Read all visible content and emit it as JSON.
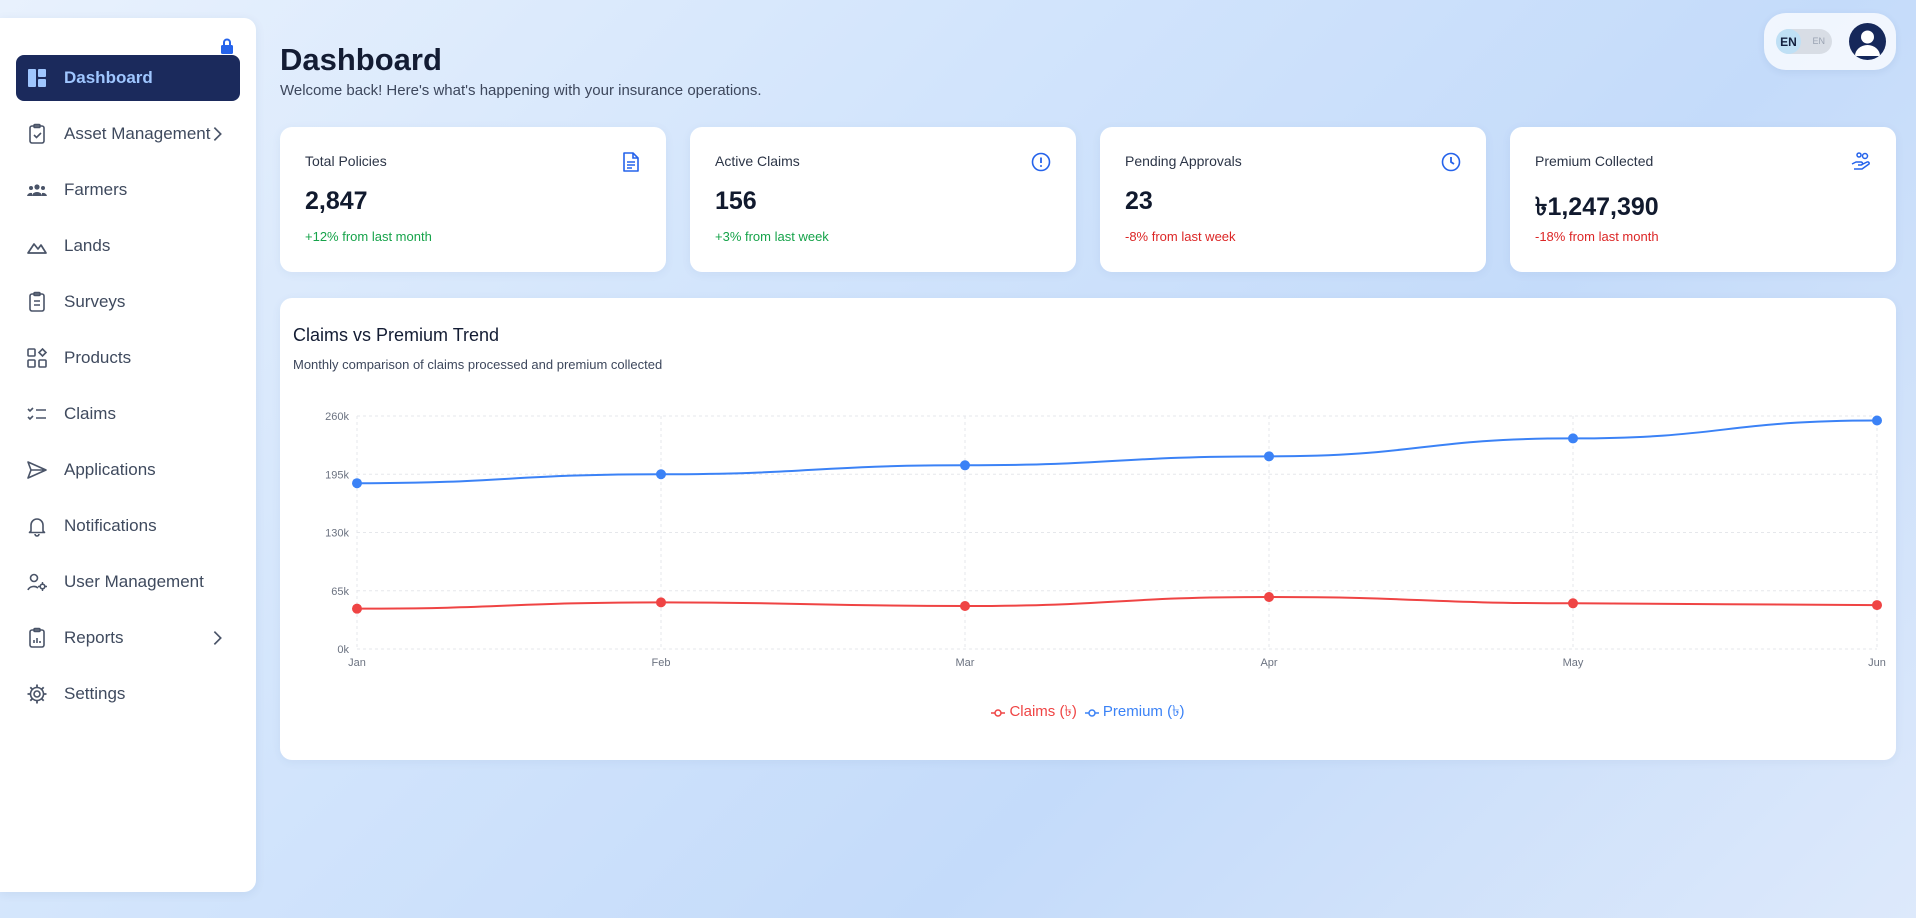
{
  "sidebar": {
    "items": [
      {
        "label": "Dashboard",
        "icon": "dashboard-icon",
        "active": true
      },
      {
        "label": "Asset Management",
        "icon": "clipboard-check-icon",
        "chevron": true
      },
      {
        "label": "Farmers",
        "icon": "users-icon"
      },
      {
        "label": "Lands",
        "icon": "mountain-icon"
      },
      {
        "label": "Surveys",
        "icon": "clipboard-icon"
      },
      {
        "label": "Products",
        "icon": "grid-icon"
      },
      {
        "label": "Claims",
        "icon": "checklist-icon"
      },
      {
        "label": "Applications",
        "icon": "send-icon"
      },
      {
        "label": "Notifications",
        "icon": "bell-icon"
      },
      {
        "label": "User Management",
        "icon": "user-cog-icon"
      },
      {
        "label": "Reports",
        "icon": "report-icon",
        "chevron": true
      },
      {
        "label": "Settings",
        "icon": "gear-icon"
      }
    ]
  },
  "header": {
    "title": "Dashboard",
    "subtitle": "Welcome back! Here's what's happening with your insurance operations.",
    "lang_on": "EN",
    "lang_off": "EN"
  },
  "stats": [
    {
      "label": "Total Policies",
      "value": "2,847",
      "delta": "+12% from last month",
      "trend": "up",
      "icon": "document-icon"
    },
    {
      "label": "Active Claims",
      "value": "156",
      "delta": "+3% from last week",
      "trend": "up",
      "icon": "alert-circle-icon"
    },
    {
      "label": "Pending Approvals",
      "value": "23",
      "delta": "-8% from last week",
      "trend": "down",
      "icon": "clock-icon"
    },
    {
      "label": "Premium Collected",
      "value": "৳1,247,390",
      "delta": "-18% from last month",
      "trend": "down",
      "icon": "hand-coins-icon"
    }
  ],
  "chart": {
    "title": "Claims vs Premium Trend",
    "subtitle": "Monthly comparison of claims processed and premium collected"
  },
  "chart_data": {
    "type": "line",
    "categories": [
      "Jan",
      "Feb",
      "Mar",
      "Apr",
      "May",
      "Jun"
    ],
    "series": [
      {
        "name": "Claims (৳)",
        "color": "#ef4444",
        "values": [
          45000,
          52000,
          48000,
          58000,
          51000,
          49000
        ]
      },
      {
        "name": "Premium (৳)",
        "color": "#3b82f6",
        "values": [
          185000,
          195000,
          205000,
          215000,
          235000,
          255000
        ]
      }
    ],
    "ylim": [
      0,
      260000
    ],
    "yticks": [
      "0k",
      "65k",
      "130k",
      "195k",
      "260k"
    ],
    "grid": true,
    "legend": "bottom-center"
  },
  "colors": {
    "accent": "#1b2a5c",
    "active_text": "#9fc6ff",
    "positive": "#16a34a",
    "negative": "#dc2626",
    "icon_blue": "#2563eb"
  }
}
